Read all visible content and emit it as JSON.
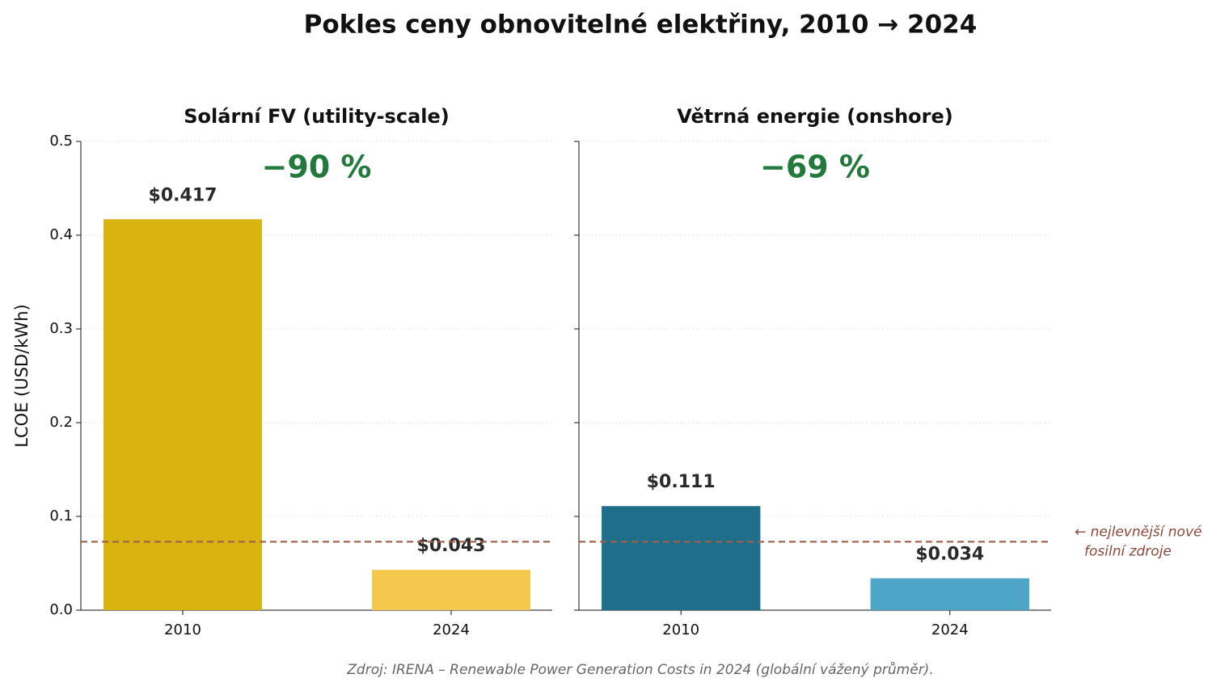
{
  "title": "Pokles ceny obnovitelné elektřiny, 2010 → 2024",
  "source": "Zdroj: IRENA – Renewable Power Generation Costs in 2024 (globální vážený průměr).",
  "sharey": true,
  "chart_data": [
    {
      "type": "bar",
      "title": "Solární FV (utility-scale)",
      "ylabel": "LCOE (USD/kWh)",
      "categories": [
        "2010",
        "2024"
      ],
      "values": [
        0.417,
        0.043
      ],
      "value_labels": [
        "$0.417",
        "$0.043"
      ],
      "colors": [
        "#d8b410",
        "#f2c94c"
      ],
      "ylim": [
        0,
        0.5
      ],
      "yticks": [
        {
          "value": 0,
          "label": "0.0"
        },
        0.1,
        0.2,
        0.3,
        0.4,
        0.5
      ],
      "grid": true,
      "annotation": "−90 %",
      "reference_line": {
        "value": 0.073,
        "color": "#a0604a"
      }
    },
    {
      "type": "bar",
      "title": "Větrná energie (onshore)",
      "categories": [
        "2010",
        "2024"
      ],
      "values": [
        0.111,
        0.034
      ],
      "value_labels": [
        "$0.111",
        "$0.034"
      ],
      "colors": [
        "#1f6e8a",
        "#4da6c6"
      ],
      "grid": true,
      "annotation": "−69 %",
      "reference_line": {
        "value": 0.073,
        "color": "#a0604a",
        "label": [
          "← nejlevnější nové",
          "fosilní zdroje"
        ]
      }
    }
  ]
}
